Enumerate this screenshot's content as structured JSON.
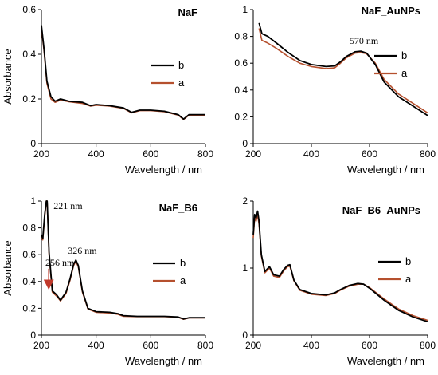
{
  "colors": {
    "b": "#000000",
    "a": "#b5502e",
    "arrow": "#c0392b",
    "axis": "#000000"
  },
  "chart_data": [
    {
      "type": "line",
      "title": "NaF",
      "xlabel": "Wavelength / nm",
      "ylabel": "Absorbance",
      "xlim": [
        200,
        800
      ],
      "ylim": [
        0,
        0.6
      ],
      "xticks": [
        "200",
        "400",
        "600",
        "800"
      ],
      "yticks": [
        "0",
        "0.2",
        "0.4",
        "0.6"
      ],
      "legend_position": "right",
      "annotations": [],
      "series": [
        {
          "name": "b",
          "x": [
            200,
            210,
            220,
            235,
            250,
            270,
            300,
            350,
            380,
            400,
            450,
            500,
            530,
            560,
            600,
            650,
            700,
            720,
            740,
            770,
            800
          ],
          "y": [
            0.53,
            0.42,
            0.28,
            0.21,
            0.19,
            0.2,
            0.19,
            0.185,
            0.17,
            0.175,
            0.17,
            0.16,
            0.14,
            0.15,
            0.15,
            0.145,
            0.13,
            0.11,
            0.13,
            0.13,
            0.13
          ]
        },
        {
          "name": "a",
          "x": [
            200,
            210,
            220,
            235,
            250,
            270,
            300,
            350,
            380,
            400,
            450,
            500,
            530,
            560,
            600,
            650,
            700,
            720,
            740,
            770,
            800
          ],
          "y": [
            0.52,
            0.41,
            0.27,
            0.2,
            0.185,
            0.195,
            0.188,
            0.18,
            0.168,
            0.172,
            0.168,
            0.158,
            0.138,
            0.148,
            0.148,
            0.143,
            0.128,
            0.108,
            0.128,
            0.128,
            0.128
          ]
        }
      ]
    },
    {
      "type": "line",
      "title": "NaF_AuNPs",
      "xlabel": "Wavelength / nm",
      "ylabel": "",
      "xlim": [
        200,
        800
      ],
      "ylim": [
        0,
        1
      ],
      "xticks": [
        "200",
        "400",
        "600",
        "800"
      ],
      "yticks": [
        "0",
        "0.2",
        "0.4",
        "0.6",
        "0.8",
        "1"
      ],
      "legend_position": "right",
      "annotations": [
        {
          "text": "570 nm",
          "x": 570,
          "y": 0.72,
          "arrow": false
        }
      ],
      "series": [
        {
          "name": "b",
          "x": [
            220,
            230,
            250,
            280,
            320,
            360,
            400,
            450,
            480,
            500,
            520,
            550,
            570,
            590,
            620,
            650,
            700,
            750,
            800
          ],
          "y": [
            0.9,
            0.82,
            0.8,
            0.75,
            0.68,
            0.62,
            0.59,
            0.575,
            0.58,
            0.61,
            0.65,
            0.685,
            0.69,
            0.675,
            0.59,
            0.46,
            0.35,
            0.28,
            0.21
          ]
        },
        {
          "name": "a",
          "x": [
            220,
            230,
            250,
            280,
            320,
            360,
            400,
            450,
            480,
            500,
            520,
            550,
            570,
            590,
            620,
            650,
            700,
            750,
            800
          ],
          "y": [
            0.86,
            0.77,
            0.75,
            0.71,
            0.65,
            0.6,
            0.575,
            0.56,
            0.565,
            0.6,
            0.64,
            0.675,
            0.68,
            0.67,
            0.6,
            0.48,
            0.37,
            0.3,
            0.23
          ]
        }
      ]
    },
    {
      "type": "line",
      "title": "NaF_B6",
      "xlabel": "Wavelength / nm",
      "ylabel": "Absorbance",
      "xlim": [
        200,
        800
      ],
      "ylim": [
        0,
        1
      ],
      "xticks": [
        "200",
        "400",
        "600",
        "800"
      ],
      "yticks": [
        "0",
        "0.2",
        "0.4",
        "0.6",
        "0.8",
        "1"
      ],
      "legend_position": "right",
      "annotations": [
        {
          "text": "221 nm",
          "x": 221,
          "y": 1.0,
          "arrow": false
        },
        {
          "text": "256 nm",
          "x": 256,
          "y": 0.34,
          "arrow": true
        },
        {
          "text": "326 nm",
          "x": 326,
          "y": 0.56,
          "arrow": false
        }
      ],
      "series": [
        {
          "name": "b",
          "x": [
            200,
            205,
            212,
            218,
            221,
            228,
            240,
            256,
            270,
            290,
            305,
            318,
            326,
            335,
            350,
            370,
            400,
            450,
            480,
            500,
            550,
            600,
            650,
            700,
            720,
            740,
            800
          ],
          "y": [
            0.75,
            0.72,
            0.9,
            1.0,
            1.0,
            0.62,
            0.33,
            0.3,
            0.26,
            0.32,
            0.42,
            0.53,
            0.56,
            0.52,
            0.33,
            0.2,
            0.175,
            0.17,
            0.16,
            0.145,
            0.14,
            0.14,
            0.14,
            0.135,
            0.12,
            0.13,
            0.13
          ]
        },
        {
          "name": "a",
          "x": [
            200,
            205,
            212,
            218,
            221,
            228,
            240,
            256,
            270,
            290,
            305,
            318,
            326,
            335,
            350,
            370,
            400,
            450,
            480,
            500,
            550,
            600,
            650,
            700,
            720,
            740,
            800
          ],
          "y": [
            0.73,
            0.71,
            0.88,
            1.0,
            1.0,
            0.6,
            0.32,
            0.29,
            0.255,
            0.31,
            0.41,
            0.52,
            0.55,
            0.51,
            0.32,
            0.195,
            0.17,
            0.165,
            0.155,
            0.14,
            0.138,
            0.138,
            0.138,
            0.133,
            0.118,
            0.128,
            0.128
          ]
        }
      ]
    },
    {
      "type": "line",
      "title": "NaF_B6_AuNPs",
      "xlabel": "Wavelength / nm",
      "ylabel": "",
      "xlim": [
        200,
        800
      ],
      "ylim": [
        0,
        2
      ],
      "xticks": [
        "200",
        "400",
        "600",
        "800"
      ],
      "yticks": [
        "0",
        "1",
        "2"
      ],
      "legend_position": "right",
      "annotations": [],
      "series": [
        {
          "name": "b",
          "x": [
            200,
            205,
            210,
            215,
            220,
            228,
            240,
            256,
            270,
            290,
            305,
            318,
            326,
            340,
            360,
            400,
            450,
            480,
            500,
            530,
            560,
            580,
            600,
            650,
            700,
            750,
            800
          ],
          "y": [
            1.5,
            1.8,
            1.75,
            1.85,
            1.7,
            1.2,
            0.95,
            1.02,
            0.9,
            0.88,
            0.98,
            1.04,
            1.05,
            0.82,
            0.68,
            0.62,
            0.6,
            0.63,
            0.68,
            0.74,
            0.77,
            0.76,
            0.7,
            0.52,
            0.37,
            0.27,
            0.2
          ]
        },
        {
          "name": "a",
          "x": [
            200,
            205,
            210,
            215,
            220,
            228,
            240,
            256,
            270,
            290,
            305,
            318,
            326,
            340,
            360,
            400,
            450,
            480,
            500,
            530,
            560,
            580,
            600,
            650,
            700,
            750,
            800
          ],
          "y": [
            1.45,
            1.75,
            1.7,
            1.8,
            1.65,
            1.18,
            0.93,
            1.0,
            0.88,
            0.86,
            0.96,
            1.02,
            1.03,
            0.81,
            0.67,
            0.61,
            0.59,
            0.62,
            0.67,
            0.73,
            0.76,
            0.76,
            0.71,
            0.54,
            0.39,
            0.29,
            0.22
          ]
        }
      ]
    }
  ]
}
